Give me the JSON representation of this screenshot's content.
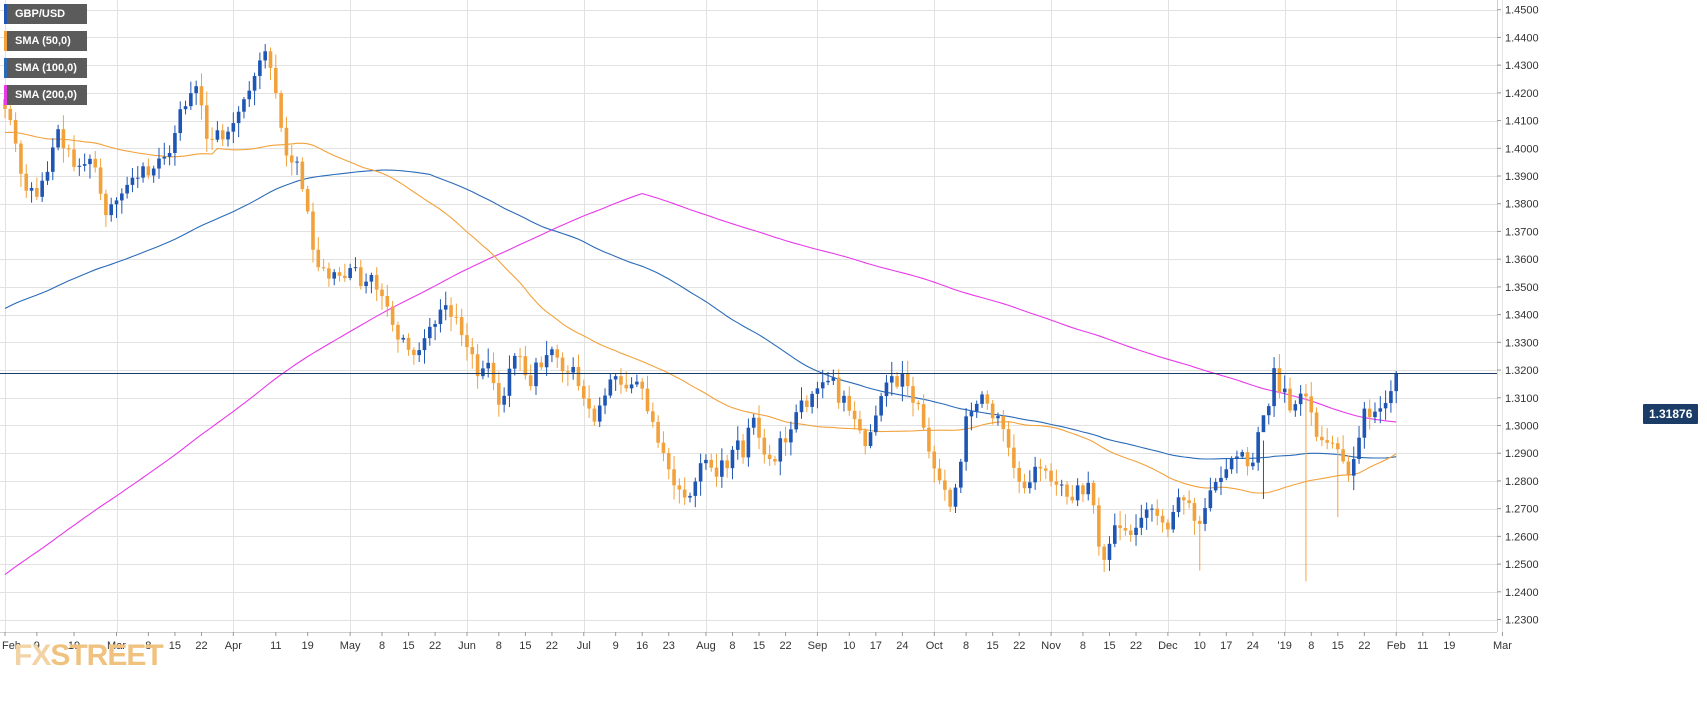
{
  "chart_data": {
    "type": "candlestick",
    "pair": "GBP/USD",
    "last_price": "1.31876",
    "y_axis": {
      "range": [
        1.2255,
        1.4535
      ],
      "ticks": [
        "1.4500",
        "1.4400",
        "1.4300",
        "1.4200",
        "1.4100",
        "1.4000",
        "1.3900",
        "1.3800",
        "1.3700",
        "1.3600",
        "1.3500",
        "1.3400",
        "1.3300",
        "1.3200",
        "1.3100",
        "1.3000",
        "1.2900",
        "1.2800",
        "1.2700",
        "1.2600",
        "1.2500",
        "1.2400",
        "1.2300"
      ],
      "tick_values": [
        1.45,
        1.44,
        1.43,
        1.42,
        1.41,
        1.4,
        1.39,
        1.38,
        1.37,
        1.36,
        1.35,
        1.34,
        1.33,
        1.32,
        1.31,
        1.3,
        1.29,
        1.28,
        1.27,
        1.26,
        1.25,
        1.24,
        1.23
      ]
    },
    "x_axis": {
      "labels": [
        "Feb",
        "9",
        "19",
        "Mar",
        "8",
        "15",
        "22",
        "Apr",
        "11",
        "19",
        "May",
        "8",
        "15",
        "22",
        "Jun",
        "8",
        "15",
        "22",
        "Jul",
        "9",
        "16",
        "23",
        "Aug",
        "8",
        "15",
        "22",
        "Sep",
        "10",
        "17",
        "24",
        "Oct",
        "8",
        "15",
        "22",
        "Nov",
        "8",
        "15",
        "22",
        "Dec",
        "10",
        "17",
        "24",
        "'19",
        "8",
        "15",
        "22",
        "Feb",
        "11",
        "19",
        "Mar"
      ],
      "label_bar_index": [
        0,
        6,
        13,
        21,
        27,
        32,
        37,
        43,
        51,
        57,
        65,
        71,
        76,
        81,
        87,
        93,
        98,
        103,
        109,
        115,
        120,
        125,
        132,
        137,
        142,
        147,
        153,
        159,
        164,
        169,
        175,
        181,
        186,
        191,
        197,
        203,
        208,
        213,
        219,
        225,
        230,
        235,
        241,
        246,
        251,
        256,
        262,
        267,
        272,
        282
      ],
      "grid_bar_index": [
        0,
        21,
        43,
        65,
        87,
        109,
        132,
        153,
        175,
        197,
        219,
        241,
        262,
        282
      ]
    },
    "grid": true,
    "legend_position": "top-left",
    "series": [
      {
        "name": "GBP/USD",
        "color": "#1f55b3"
      },
      {
        "name": "SMA (50,0)",
        "color": "#f2a23c"
      },
      {
        "name": "SMA (100,0)",
        "color": "#2a6bb8"
      },
      {
        "name": "SMA (200,0)",
        "color": "#e83ae8"
      }
    ],
    "closes": [
      1.4142,
      1.4102,
      1.4017,
      1.3908,
      1.3847,
      1.3857,
      1.3825,
      1.3883,
      1.3915,
      1.4003,
      1.4069,
      1.4,
      1.3996,
      1.3933,
      1.3937,
      1.3943,
      1.3962,
      1.3931,
      1.3836,
      1.3759,
      1.3798,
      1.3812,
      1.3837,
      1.3868,
      1.3894,
      1.3894,
      1.3935,
      1.3902,
      1.3927,
      1.3963,
      1.3969,
      1.3983,
      1.4055,
      1.4141,
      1.4152,
      1.4199,
      1.4224,
      1.4155,
      1.4034,
      1.4031,
      1.4065,
      1.4032,
      1.406,
      1.4091,
      1.4132,
      1.4177,
      1.4208,
      1.4261,
      1.4317,
      1.435,
      1.429,
      1.4199,
      1.4074,
      1.3974,
      1.3949,
      1.3952,
      1.3853,
      1.3772,
      1.3634,
      1.3571,
      1.3567,
      1.353,
      1.3553,
      1.354,
      1.3532,
      1.3568,
      1.3571,
      1.3503,
      1.3519,
      1.3543,
      1.349,
      1.3467,
      1.3429,
      1.3363,
      1.331,
      1.3316,
      1.3273,
      1.3254,
      1.3272,
      1.3315,
      1.3356,
      1.3366,
      1.3418,
      1.3434,
      1.3392,
      1.3391,
      1.3326,
      1.3283,
      1.3257,
      1.3178,
      1.3206,
      1.3226,
      1.3153,
      1.3075,
      1.3107,
      1.3205,
      1.3251,
      1.325,
      1.3181,
      1.3142,
      1.3227,
      1.321,
      1.3254,
      1.3275,
      1.3245,
      1.3196,
      1.3191,
      1.3211,
      1.3142,
      1.3097,
      1.3061,
      1.3014,
      1.3072,
      1.3108,
      1.3166,
      1.3178,
      1.3147,
      1.3134,
      1.3148,
      1.3158,
      1.3133,
      1.3051,
      1.3013,
      1.2938,
      1.2901,
      1.2842,
      1.2784,
      1.2769,
      1.274,
      1.2746,
      1.2798,
      1.2864,
      1.2876,
      1.2848,
      1.2815,
      1.2874,
      1.2846,
      1.2912,
      1.2946,
      1.2885,
      1.2992,
      1.3028,
      1.2956,
      1.2895,
      1.2879,
      1.287,
      1.2954,
      1.2939,
      1.2986,
      1.3048,
      1.309,
      1.3067,
      1.3114,
      1.3134,
      1.3156,
      1.3161,
      1.3173,
      1.3082,
      1.3107,
      1.3053,
      1.3023,
      1.2982,
      1.2926,
      1.2976,
      1.3036,
      1.3106,
      1.3155,
      1.3178,
      1.314,
      1.3187,
      1.3142,
      1.3082,
      1.3077,
      1.2992,
      1.2906,
      1.2845,
      1.2802,
      1.2768,
      1.2707,
      1.2776,
      1.2869,
      1.3033,
      1.3051,
      1.3078,
      1.3112,
      1.3079,
      1.3026,
      1.3034,
      1.2987,
      1.292,
      1.2847,
      1.2797,
      1.2774,
      1.2795,
      1.2851,
      1.2845,
      1.2837,
      1.2798,
      1.2786,
      1.2787,
      1.2743,
      1.273,
      1.2784,
      1.2752,
      1.2793,
      1.2712,
      1.2563,
      1.2515,
      1.2573,
      1.264,
      1.263,
      1.2621,
      1.2605,
      1.2631,
      1.2667,
      1.2697,
      1.27,
      1.2674,
      1.265,
      1.2625,
      1.2688,
      1.2741,
      1.273,
      1.272,
      1.2656,
      1.2645,
      1.2702,
      1.2766,
      1.2796,
      1.2811,
      1.2842,
      1.288,
      1.2888,
      1.2904,
      1.2853,
      1.2866,
      1.2976,
      1.3037,
      1.307,
      1.3207,
      1.312,
      1.3133,
      1.3054,
      1.3077,
      1.3115,
      1.3105,
      1.3047,
      1.2959,
      1.2947,
      1.2938,
      1.2936,
      1.2914,
      1.287,
      1.2819,
      1.2879,
      1.2956,
      1.3061,
      1.303,
      1.305,
      1.3062,
      1.3081,
      1.3124,
      1.3187
    ]
  },
  "legend": [
    {
      "label": "GBP/USD",
      "color": "#1f55b3"
    },
    {
      "label": "SMA (50,0)",
      "color": "#f2a23c"
    },
    {
      "label": "SMA (100,0)",
      "color": "#2a6bb8"
    },
    {
      "label": "SMA (200,0)",
      "color": "#e83ae8"
    }
  ],
  "price_tag": "1.31876",
  "watermark": {
    "part1": "FX",
    "part2": "STREET"
  },
  "colors": {
    "bull": "#1f55b3",
    "bear": "#f2a23c",
    "grid": "#e2e2e2",
    "axis": "#cfcfcf",
    "price_line": "#1a3c66"
  }
}
